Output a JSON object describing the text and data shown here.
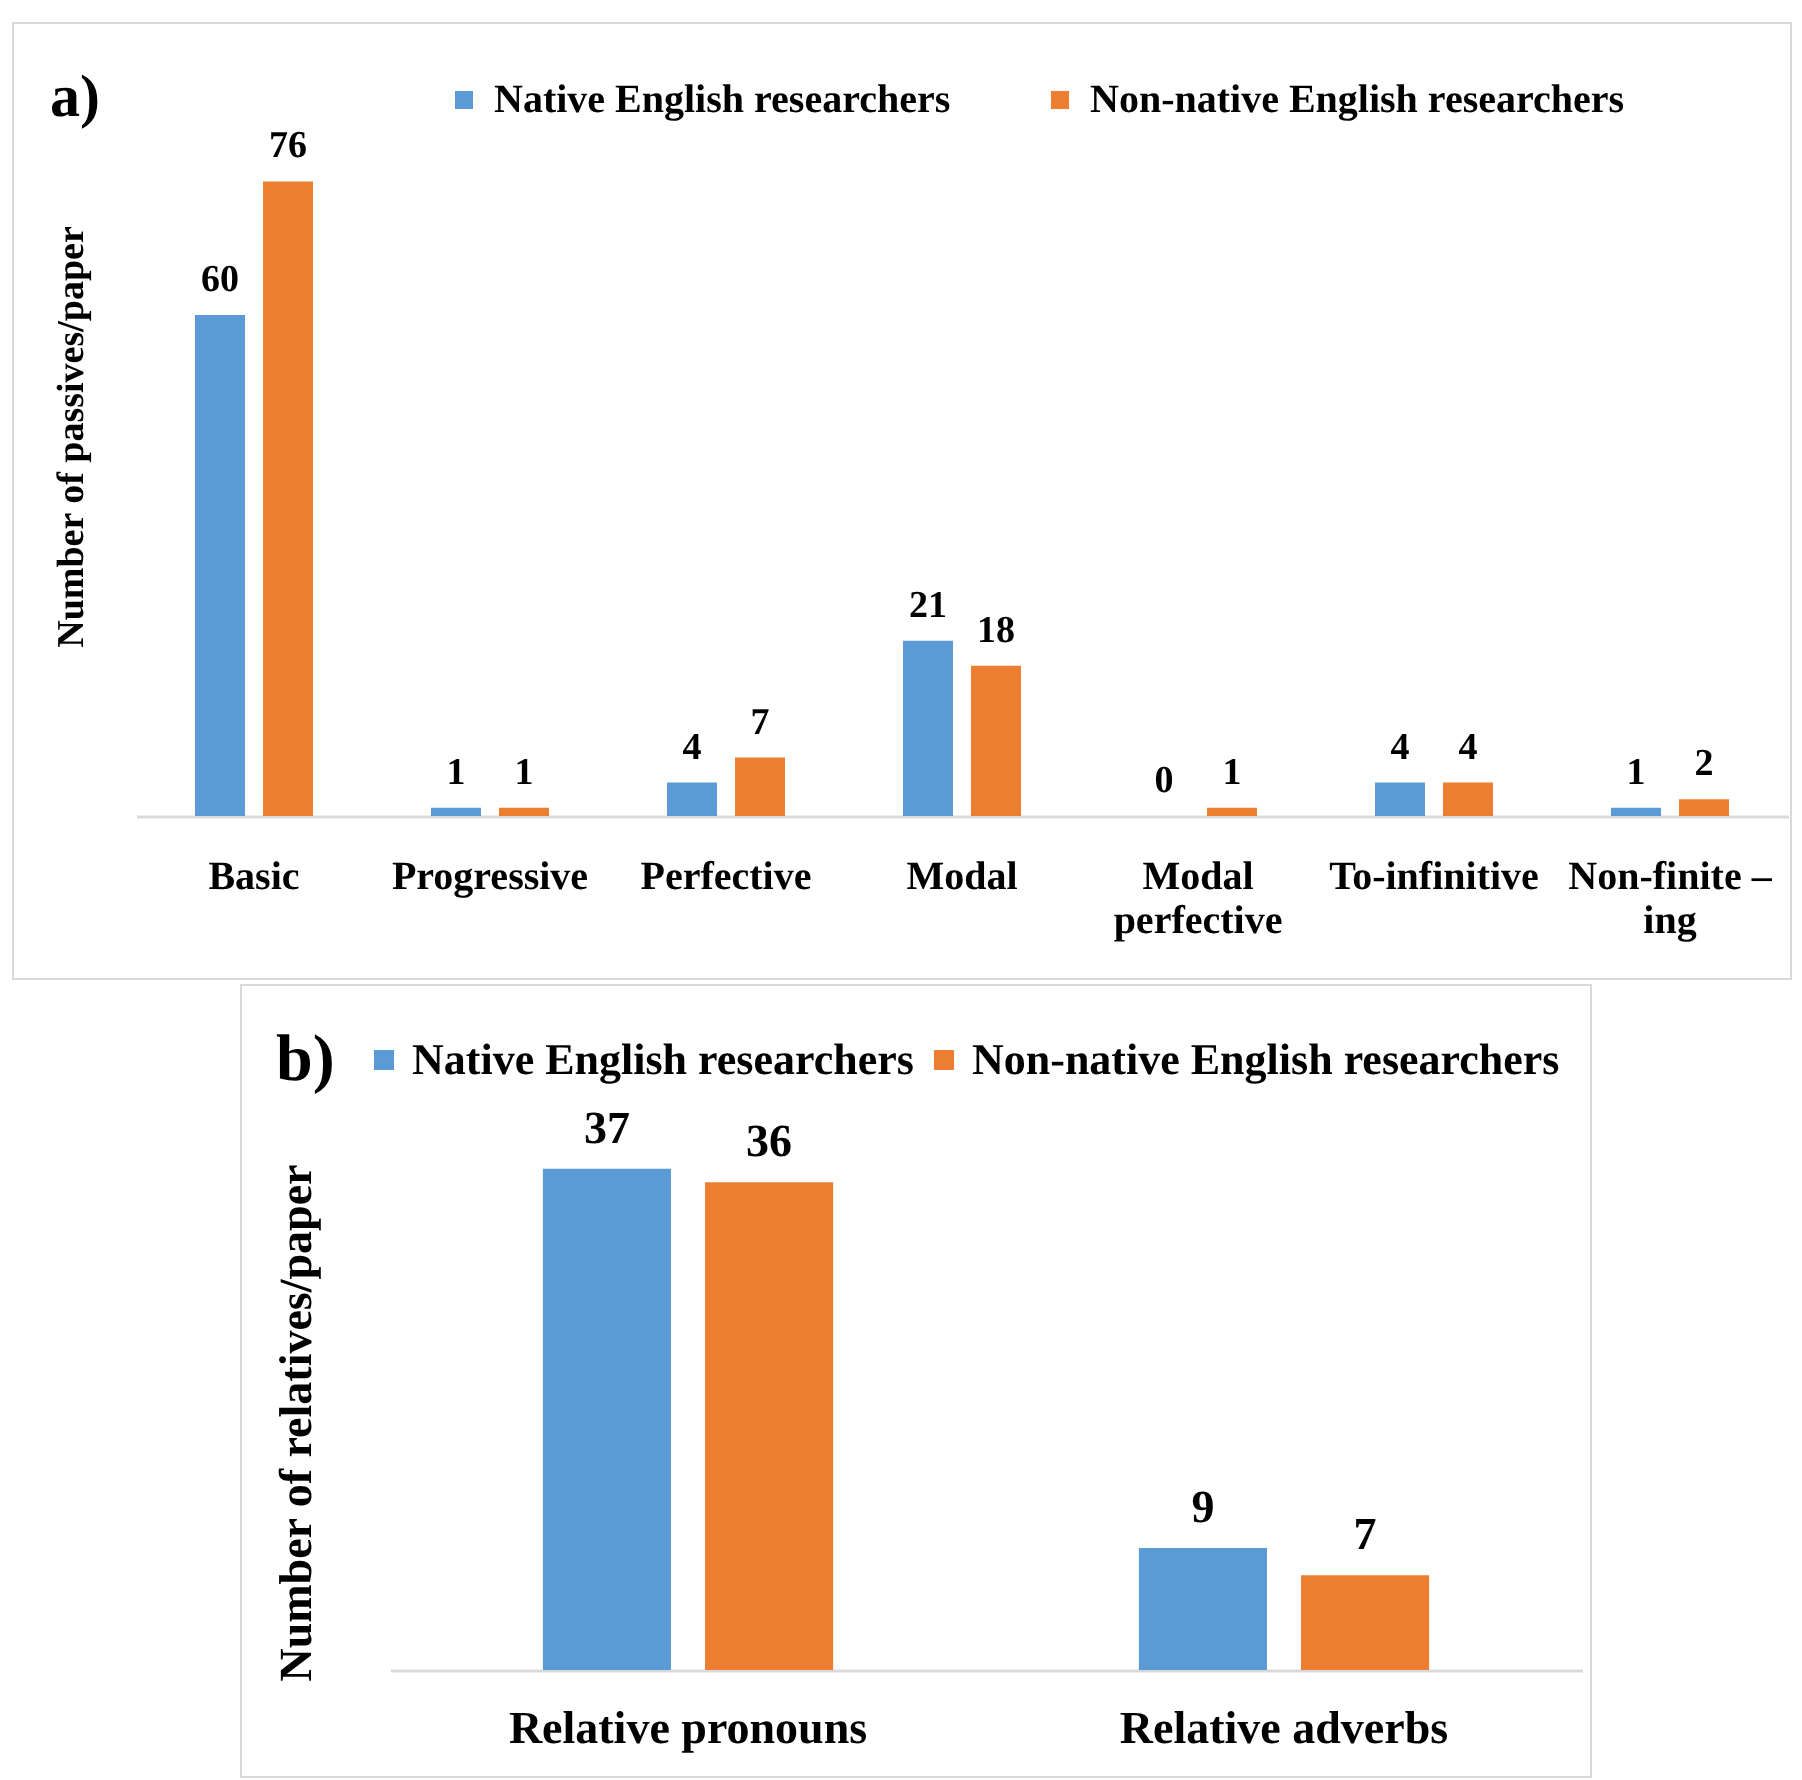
{
  "chart_data": [
    {
      "type": "bar",
      "title": "a)",
      "ylabel": "Number of passives/paper",
      "categories": [
        "Basic",
        "Progressive",
        "Perfective",
        "Modal",
        "Modal perfective",
        "To-infinitive",
        "Non-finite –ing"
      ],
      "series": [
        {
          "name": "Native English researchers",
          "color": "#5b9bd5",
          "values": [
            60,
            1,
            4,
            21,
            0,
            4,
            1
          ]
        },
        {
          "name": "Non-native English researchers",
          "color": "#ed7d31",
          "values": [
            76,
            1,
            7,
            18,
            1,
            4,
            2
          ]
        }
      ],
      "data_labels": true,
      "legend": "top",
      "tick_labels": "x"
    },
    {
      "type": "bar",
      "title": "b)",
      "ylabel": "Number of relatives/paper",
      "categories": [
        "Relative pronouns",
        "Relative adverbs"
      ],
      "series": [
        {
          "name": "Native English researchers",
          "color": "#5b9bd5",
          "values": [
            37,
            9
          ]
        },
        {
          "name": "Non-native English researchers",
          "color": "#ed7d31",
          "values": [
            36,
            7
          ]
        }
      ],
      "data_labels": true,
      "legend": "top",
      "tick_labels": "x"
    }
  ]
}
